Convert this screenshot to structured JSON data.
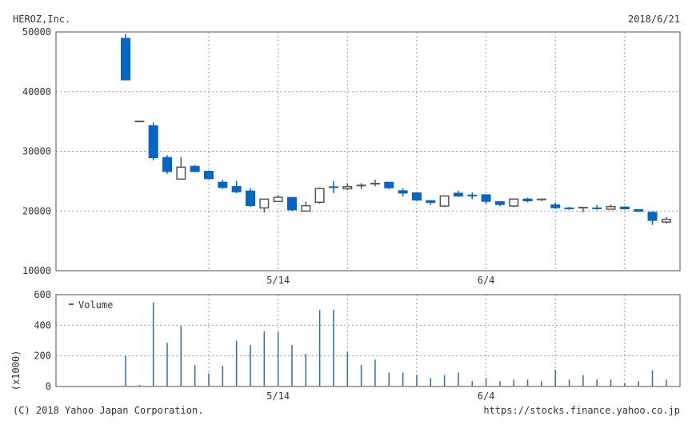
{
  "header": {
    "title": "HEROZ,Inc.",
    "date": "2018/6/21"
  },
  "footer": {
    "copyright": "(C) 2018 Yahoo Japan Corporation.",
    "url": "https://stocks.finance.yahoo.co.jp"
  },
  "colors": {
    "down": "#0066cc",
    "up_stroke": "#555555",
    "volume": "#2a6db0",
    "grid": "#999999"
  },
  "chart_data": [
    {
      "type": "candlestick",
      "title": "HEROZ,Inc.",
      "ylim": [
        10000,
        50000
      ],
      "yticks": [
        "10000",
        "20000",
        "30000",
        "40000",
        "50000"
      ],
      "xticks": [
        {
          "label": "5/14",
          "index": 11
        },
        {
          "label": "6/4",
          "index": 26
        }
      ],
      "week_grid_indices": [
        6,
        11,
        16,
        21,
        26,
        31,
        36
      ],
      "grid": true,
      "candles": [
        {
          "o": 49000,
          "h": 49650,
          "l": 41900,
          "c": 41900,
          "dir": "down"
        },
        {
          "o": 35000,
          "h": 35000,
          "l": 35000,
          "c": 35000,
          "dir": "up"
        },
        {
          "o": 34350,
          "h": 34830,
          "l": 28500,
          "c": 28850,
          "dir": "down"
        },
        {
          "o": 29030,
          "h": 29350,
          "l": 26220,
          "c": 26540,
          "dir": "down"
        },
        {
          "o": 25340,
          "h": 29030,
          "l": 25340,
          "c": 27350,
          "dir": "up"
        },
        {
          "o": 27560,
          "h": 27700,
          "l": 26500,
          "c": 26540,
          "dir": "down"
        },
        {
          "o": 26720,
          "h": 26800,
          "l": 25300,
          "c": 25340,
          "dir": "down"
        },
        {
          "o": 24890,
          "h": 25250,
          "l": 23700,
          "c": 23870,
          "dir": "down"
        },
        {
          "o": 24180,
          "h": 25020,
          "l": 22990,
          "c": 23150,
          "dir": "down"
        },
        {
          "o": 23420,
          "h": 23820,
          "l": 20700,
          "c": 20830,
          "dir": "down"
        },
        {
          "o": 20520,
          "h": 21990,
          "l": 19760,
          "c": 21990,
          "dir": "up"
        },
        {
          "o": 21600,
          "h": 22670,
          "l": 21500,
          "c": 22300,
          "dir": "up"
        },
        {
          "o": 22340,
          "h": 22340,
          "l": 20000,
          "c": 20120,
          "dir": "down"
        },
        {
          "o": 19990,
          "h": 21550,
          "l": 19990,
          "c": 20880,
          "dir": "up"
        },
        {
          "o": 21470,
          "h": 23940,
          "l": 21200,
          "c": 23770,
          "dir": "up"
        },
        {
          "o": 24000,
          "h": 25000,
          "l": 23000,
          "c": 23900,
          "dir": "down"
        },
        {
          "o": 23730,
          "h": 24670,
          "l": 23500,
          "c": 24080,
          "dir": "up"
        },
        {
          "o": 24270,
          "h": 24660,
          "l": 23680,
          "c": 24270,
          "dir": "up"
        },
        {
          "o": 24580,
          "h": 25250,
          "l": 24140,
          "c": 24580,
          "dir": "up"
        },
        {
          "o": 24890,
          "h": 24890,
          "l": 23680,
          "c": 23820,
          "dir": "down"
        },
        {
          "o": 23470,
          "h": 23820,
          "l": 22440,
          "c": 22930,
          "dir": "down"
        },
        {
          "o": 23110,
          "h": 23110,
          "l": 21680,
          "c": 21770,
          "dir": "down"
        },
        {
          "o": 21810,
          "h": 21810,
          "l": 21010,
          "c": 21370,
          "dir": "down"
        },
        {
          "o": 20830,
          "h": 22520,
          "l": 20650,
          "c": 22520,
          "dir": "up"
        },
        {
          "o": 23060,
          "h": 23420,
          "l": 22340,
          "c": 22440,
          "dir": "down"
        },
        {
          "o": 22600,
          "h": 23110,
          "l": 22000,
          "c": 22570,
          "dir": "down"
        },
        {
          "o": 22790,
          "h": 22790,
          "l": 21230,
          "c": 21540,
          "dir": "down"
        },
        {
          "o": 21630,
          "h": 21630,
          "l": 20830,
          "c": 21010,
          "dir": "down"
        },
        {
          "o": 20830,
          "h": 22000,
          "l": 20650,
          "c": 22000,
          "dir": "up"
        },
        {
          "o": 22080,
          "h": 22250,
          "l": 21450,
          "c": 21630,
          "dir": "down"
        },
        {
          "o": 21850,
          "h": 21990,
          "l": 21630,
          "c": 21950,
          "dir": "up"
        },
        {
          "o": 21100,
          "h": 21450,
          "l": 20380,
          "c": 20470,
          "dir": "down"
        },
        {
          "o": 20450,
          "h": 20700,
          "l": 20200,
          "c": 20430,
          "dir": "down"
        },
        {
          "o": 20390,
          "h": 20560,
          "l": 19800,
          "c": 20560,
          "dir": "up"
        },
        {
          "o": 20450,
          "h": 21010,
          "l": 20200,
          "c": 20430,
          "dir": "down"
        },
        {
          "o": 20300,
          "h": 21100,
          "l": 20300,
          "c": 20740,
          "dir": "up"
        },
        {
          "o": 20740,
          "h": 20800,
          "l": 20250,
          "c": 20300,
          "dir": "down"
        },
        {
          "o": 20300,
          "h": 20300,
          "l": 19850,
          "c": 19880,
          "dir": "down"
        },
        {
          "o": 19860,
          "h": 19900,
          "l": 17660,
          "c": 18350,
          "dir": "down"
        },
        {
          "o": 18150,
          "h": 18960,
          "l": 17890,
          "c": 18600,
          "dir": "up"
        }
      ]
    },
    {
      "type": "bar",
      "legend": "Volume",
      "legend_position": "top-left",
      "ylabel": "(x1000)",
      "ylim": [
        0,
        600
      ],
      "yticks": [
        "0",
        "200",
        "400",
        "600"
      ],
      "xticks": [
        {
          "label": "5/14",
          "index": 11
        },
        {
          "label": "6/4",
          "index": 26
        }
      ],
      "values": [
        200,
        10,
        550,
        285,
        395,
        140,
        85,
        135,
        300,
        270,
        360,
        355,
        270,
        215,
        500,
        500,
        225,
        140,
        175,
        90,
        90,
        75,
        55,
        75,
        90,
        35,
        55,
        35,
        45,
        45,
        35,
        110,
        45,
        75,
        45,
        45,
        20,
        35,
        105,
        45
      ]
    }
  ]
}
